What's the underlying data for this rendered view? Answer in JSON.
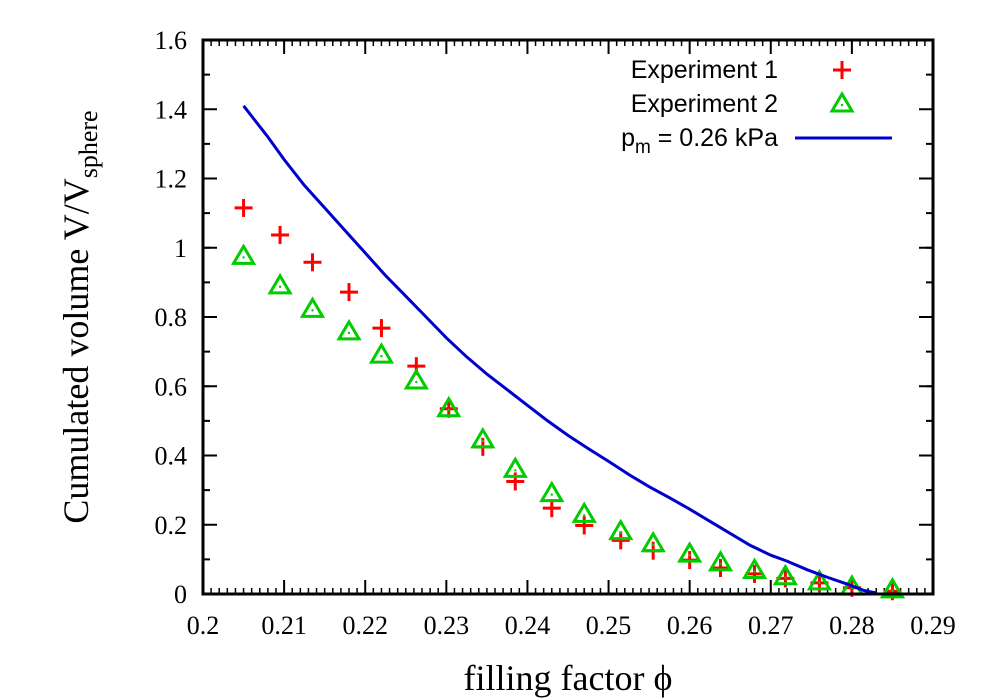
{
  "chart_data": {
    "type": "scatter",
    "xlabel": {
      "main": "filling factor ",
      "symbol": "ϕ"
    },
    "ylabel": {
      "main": "Cumulated volume V/V",
      "sub": "sphere"
    },
    "xlim": [
      0.2,
      0.29
    ],
    "ylim": [
      0,
      1.6
    ],
    "x_ticks": [
      "0.2",
      "0.21",
      "0.22",
      "0.23",
      "0.24",
      "0.25",
      "0.26",
      "0.27",
      "0.28",
      "0.29"
    ],
    "y_ticks": [
      "0",
      "0.2",
      "0.4",
      "0.6",
      "0.8",
      "1",
      "1.2",
      "1.4",
      "1.6"
    ],
    "grid": false,
    "legend_position": "top-right",
    "series": [
      {
        "name": "Experiment 1",
        "marker": "plus",
        "color": "#ff0000",
        "points": [
          [
            0.205,
            1.115
          ],
          [
            0.2095,
            1.037
          ],
          [
            0.2135,
            0.958
          ],
          [
            0.218,
            0.872
          ],
          [
            0.222,
            0.768
          ],
          [
            0.2263,
            0.658
          ],
          [
            0.2303,
            0.535
          ],
          [
            0.2345,
            0.425
          ],
          [
            0.2385,
            0.325
          ],
          [
            0.243,
            0.248
          ],
          [
            0.247,
            0.198
          ],
          [
            0.2515,
            0.155
          ],
          [
            0.2555,
            0.125
          ],
          [
            0.26,
            0.098
          ],
          [
            0.2638,
            0.075
          ],
          [
            0.268,
            0.058
          ],
          [
            0.2718,
            0.045
          ],
          [
            0.276,
            0.032
          ],
          [
            0.28,
            0.018
          ],
          [
            0.285,
            0.008
          ]
        ]
      },
      {
        "name": "Experiment 2",
        "marker": "triangle",
        "color": "#00cc00",
        "points": [
          [
            0.205,
            0.975
          ],
          [
            0.2095,
            0.89
          ],
          [
            0.2135,
            0.822
          ],
          [
            0.218,
            0.757
          ],
          [
            0.222,
            0.69
          ],
          [
            0.2263,
            0.615
          ],
          [
            0.2303,
            0.535
          ],
          [
            0.2345,
            0.445
          ],
          [
            0.2385,
            0.36
          ],
          [
            0.243,
            0.29
          ],
          [
            0.247,
            0.23
          ],
          [
            0.2515,
            0.18
          ],
          [
            0.2555,
            0.145
          ],
          [
            0.26,
            0.115
          ],
          [
            0.2638,
            0.09
          ],
          [
            0.268,
            0.068
          ],
          [
            0.2718,
            0.05
          ],
          [
            0.276,
            0.035
          ],
          [
            0.28,
            0.02
          ],
          [
            0.285,
            0.012
          ]
        ]
      },
      {
        "name": "p",
        "name_sub": "m",
        "name_rest": " = 0.26 kPa",
        "marker": "line",
        "color": "#0000cc",
        "points": [
          [
            0.205,
            1.41
          ],
          [
            0.208,
            1.32
          ],
          [
            0.21,
            1.255
          ],
          [
            0.2125,
            1.18
          ],
          [
            0.215,
            1.115
          ],
          [
            0.2175,
            1.05
          ],
          [
            0.22,
            0.985
          ],
          [
            0.2225,
            0.92
          ],
          [
            0.225,
            0.86
          ],
          [
            0.2275,
            0.8
          ],
          [
            0.23,
            0.74
          ],
          [
            0.2325,
            0.685
          ],
          [
            0.235,
            0.635
          ],
          [
            0.2375,
            0.59
          ],
          [
            0.24,
            0.545
          ],
          [
            0.2425,
            0.5
          ],
          [
            0.245,
            0.458
          ],
          [
            0.2475,
            0.42
          ],
          [
            0.25,
            0.383
          ],
          [
            0.2525,
            0.345
          ],
          [
            0.255,
            0.31
          ],
          [
            0.2575,
            0.278
          ],
          [
            0.26,
            0.245
          ],
          [
            0.2625,
            0.21
          ],
          [
            0.265,
            0.175
          ],
          [
            0.2675,
            0.14
          ],
          [
            0.27,
            0.112
          ],
          [
            0.272,
            0.095
          ],
          [
            0.2745,
            0.07
          ],
          [
            0.277,
            0.048
          ],
          [
            0.2795,
            0.028
          ],
          [
            0.2815,
            0.01
          ],
          [
            0.283,
            0.003
          ]
        ]
      }
    ]
  }
}
